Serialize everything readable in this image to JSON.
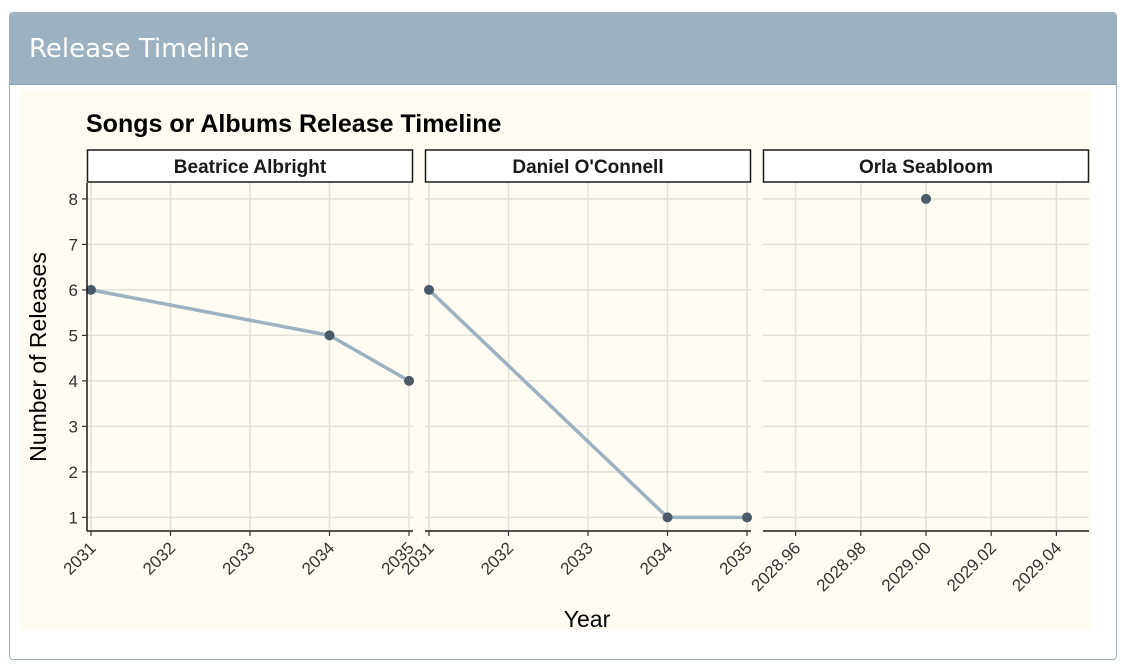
{
  "card": {
    "title": "Release Timeline"
  },
  "chart_data": {
    "type": "line",
    "title": "Songs or Albums Release Timeline",
    "xlabel": "Year",
    "ylabel": "Number of Releases",
    "ylim": [
      0.7,
      8.35
    ],
    "y_ticks": [
      1,
      2,
      3,
      4,
      5,
      6,
      7,
      8
    ],
    "grid": true,
    "colors": {
      "line": "#9db1c0",
      "point": "#4a5a66",
      "grid": "#e3e0d8",
      "background": "#fffcf4"
    },
    "facets": [
      {
        "name": "Beatrice Albright",
        "xlim": [
          2030.95,
          2035.05
        ],
        "x_ticks": [
          2031,
          2032,
          2033,
          2034,
          2035
        ],
        "x_tick_labels": [
          "2031",
          "2032",
          "2033",
          "2034",
          "2035"
        ],
        "x": [
          2031,
          2034,
          2035
        ],
        "y": [
          6,
          5,
          4
        ]
      },
      {
        "name": "Daniel O'Connell",
        "xlim": [
          2030.95,
          2035.05
        ],
        "x_ticks": [
          2031,
          2032,
          2033,
          2034,
          2035
        ],
        "x_tick_labels": [
          "2031",
          "2032",
          "2033",
          "2034",
          "2035"
        ],
        "x": [
          2031,
          2034,
          2035
        ],
        "y": [
          6,
          1,
          1
        ]
      },
      {
        "name": "Orla Seabloom",
        "xlim": [
          2028.95,
          2029.05
        ],
        "x_ticks": [
          2028.96,
          2028.98,
          2029.0,
          2029.02,
          2029.04
        ],
        "x_tick_labels": [
          "2028.96",
          "2028.98",
          "2029.00",
          "2029.02",
          "2029.04"
        ],
        "x": [
          2029.0
        ],
        "y": [
          8
        ]
      }
    ]
  }
}
